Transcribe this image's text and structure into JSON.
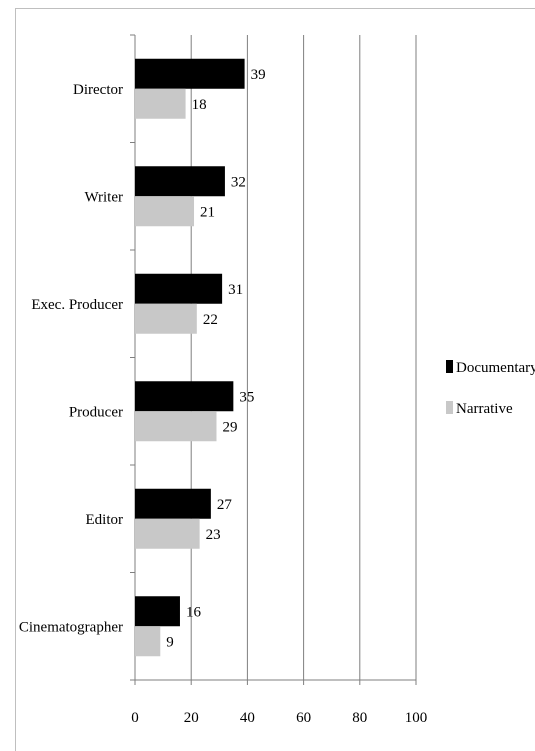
{
  "chart_data": {
    "type": "bar",
    "orientation": "horizontal",
    "categories": [
      "Director",
      "Writer",
      "Exec. Producer",
      "Producer",
      "Editor",
      "Cinematographer"
    ],
    "series": [
      {
        "name": "Documentary",
        "values": [
          39,
          32,
          31,
          35,
          27,
          16
        ],
        "color": "#000000"
      },
      {
        "name": "Narrative",
        "values": [
          18,
          21,
          22,
          29,
          23,
          9
        ],
        "color": "#c8c8c8"
      }
    ],
    "xlim": [
      0,
      100
    ],
    "xticks": [
      0,
      20,
      40,
      60,
      80,
      100
    ],
    "grid": true,
    "legend_position": "right",
    "data_labels": true
  }
}
